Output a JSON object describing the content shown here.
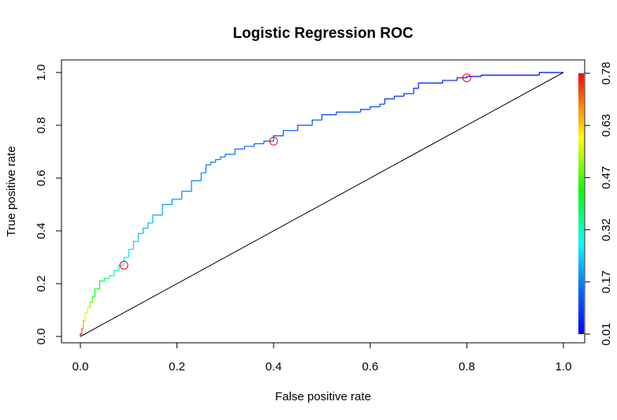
{
  "chart_data": {
    "type": "line",
    "title": "Logistic Regression ROC",
    "xlabel": "False positive rate",
    "ylabel": "True positive rate",
    "xlim": [
      0,
      1
    ],
    "ylim": [
      0,
      1
    ],
    "x_ticks": [
      "0.0",
      "0.2",
      "0.4",
      "0.6",
      "0.8",
      "1.0"
    ],
    "y_ticks": [
      "0.0",
      "0.2",
      "0.4",
      "0.6",
      "0.8",
      "1.0"
    ],
    "colorbar_ticks": [
      "0.01",
      "0.17",
      "0.32",
      "0.47",
      "0.63",
      "0.78"
    ],
    "colorbar_range": [
      0.01,
      0.78
    ],
    "grid": false,
    "legend": "none",
    "reference_line": {
      "x": [
        0,
        1
      ],
      "y": [
        0,
        1
      ],
      "color": "#000000"
    },
    "series": [
      {
        "x": [
          0,
          0.003,
          0.006,
          0.01,
          0.015,
          0.02,
          0.025,
          0.03,
          0.04,
          0.05,
          0.06,
          0.07,
          0.08,
          0.09,
          0.1,
          0.11,
          0.12,
          0.13,
          0.14,
          0.15,
          0.17,
          0.19,
          0.21,
          0.23,
          0.25,
          0.26,
          0.27,
          0.28,
          0.29,
          0.3,
          0.32,
          0.34,
          0.36,
          0.38,
          0.4,
          0.42,
          0.45,
          0.48,
          0.5,
          0.53,
          0.55,
          0.58,
          0.6,
          0.62,
          0.63,
          0.65,
          0.67,
          0.69,
          0.7,
          0.72,
          0.75,
          0.78,
          0.8,
          0.83,
          0.86,
          0.9,
          0.95,
          1.0
        ],
        "y": [
          0,
          0.01,
          0.03,
          0.06,
          0.09,
          0.11,
          0.13,
          0.15,
          0.18,
          0.21,
          0.22,
          0.23,
          0.25,
          0.27,
          0.3,
          0.33,
          0.36,
          0.39,
          0.41,
          0.43,
          0.46,
          0.5,
          0.52,
          0.55,
          0.59,
          0.62,
          0.65,
          0.66,
          0.67,
          0.68,
          0.69,
          0.71,
          0.72,
          0.73,
          0.74,
          0.76,
          0.78,
          0.8,
          0.82,
          0.84,
          0.85,
          0.85,
          0.86,
          0.87,
          0.88,
          0.9,
          0.91,
          0.92,
          0.94,
          0.96,
          0.96,
          0.97,
          0.98,
          0.985,
          0.99,
          0.99,
          0.99,
          1.0
        ],
        "cutoffs": [
          0.78,
          0.72,
          0.66,
          0.6,
          0.55,
          0.5,
          0.46,
          0.42,
          0.4,
          0.37,
          0.35,
          0.33,
          0.3,
          0.28,
          0.26,
          0.24,
          0.23,
          0.22,
          0.21,
          0.2,
          0.19,
          0.18,
          0.175,
          0.17,
          0.165,
          0.16,
          0.155,
          0.15,
          0.145,
          0.14,
          0.135,
          0.13,
          0.125,
          0.12,
          0.115,
          0.11,
          0.105,
          0.1,
          0.095,
          0.09,
          0.085,
          0.08,
          0.075,
          0.07,
          0.065,
          0.06,
          0.055,
          0.05,
          0.045,
          0.04,
          0.035,
          0.03,
          0.025,
          0.02,
          0.017,
          0.014,
          0.012,
          0.01
        ]
      }
    ],
    "markers": [
      {
        "x": 0.09,
        "y": 0.27
      },
      {
        "x": 0.4,
        "y": 0.74
      },
      {
        "x": 0.8,
        "y": 0.98
      }
    ],
    "colors": {
      "marker": "#ff0000",
      "axis": "#000000"
    }
  }
}
